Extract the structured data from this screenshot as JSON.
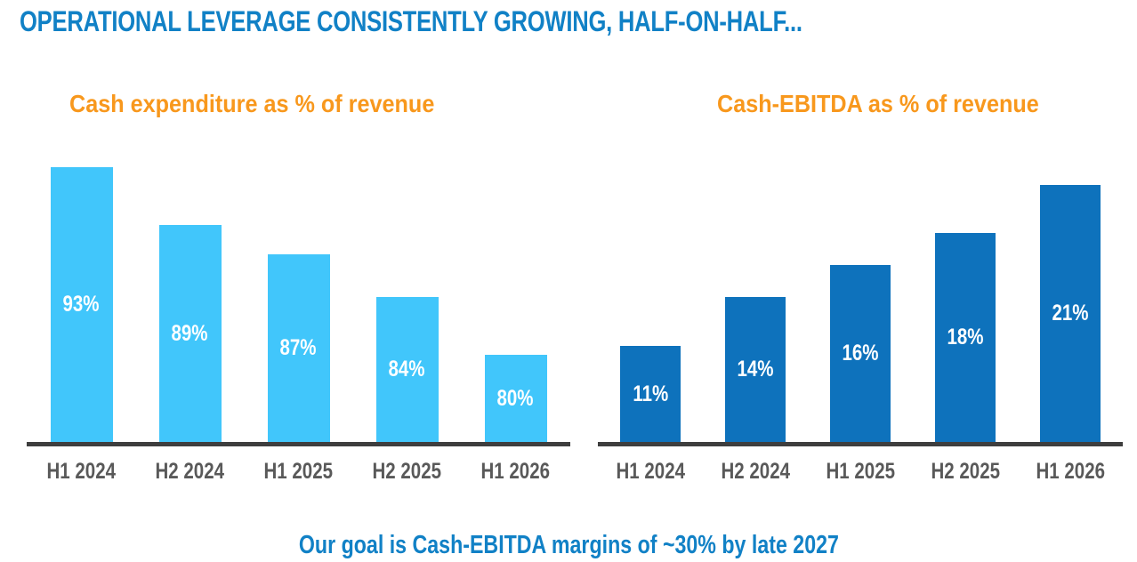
{
  "page": {
    "title": "OPERATIONAL LEVERAGE CONSISTENTLY GROWING, HALF-ON-HALF...",
    "footer": "Our goal is Cash-EBITDA margins of ~30% by late 2027"
  },
  "colors": {
    "title_blue": "#1181C6",
    "heading_orange": "#F8981D",
    "bar_light_blue": "#41C6FB",
    "bar_dark_blue": "#0E72BC",
    "axis_line": "#3E3E3E",
    "axis_label_gray": "#595959",
    "bar_label_white": "#FFFFFF"
  },
  "chart_data": [
    {
      "type": "bar",
      "title": "Cash expenditure as % of revenue",
      "categories": [
        "H1 2024",
        "H2 2024",
        "H1 2025",
        "H2 2025",
        "H1 2026"
      ],
      "values": [
        93,
        89,
        87,
        84,
        80
      ],
      "value_labels": [
        "93%",
        "89%",
        "87%",
        "84%",
        "80%"
      ],
      "bar_color": "#41C6FB",
      "xlabel": "",
      "ylabel": "",
      "ylim": [
        74,
        94
      ],
      "grid": false,
      "legend": "none",
      "value_label_position": "inside-center",
      "value_label_color": "#FFFFFF"
    },
    {
      "type": "bar",
      "title": "Cash-EBITDA as % of revenue",
      "categories": [
        "H1 2024",
        "H2 2024",
        "H1 2025",
        "H2 2025",
        "H1 2026"
      ],
      "values": [
        11,
        14,
        16,
        18,
        21
      ],
      "value_labels": [
        "11%",
        "14%",
        "16%",
        "18%",
        "21%"
      ],
      "bar_color": "#0E72BC",
      "xlabel": "",
      "ylabel": "",
      "ylim": [
        5,
        23
      ],
      "grid": false,
      "legend": "none",
      "value_label_position": "inside-center",
      "value_label_color": "#FFFFFF"
    }
  ]
}
